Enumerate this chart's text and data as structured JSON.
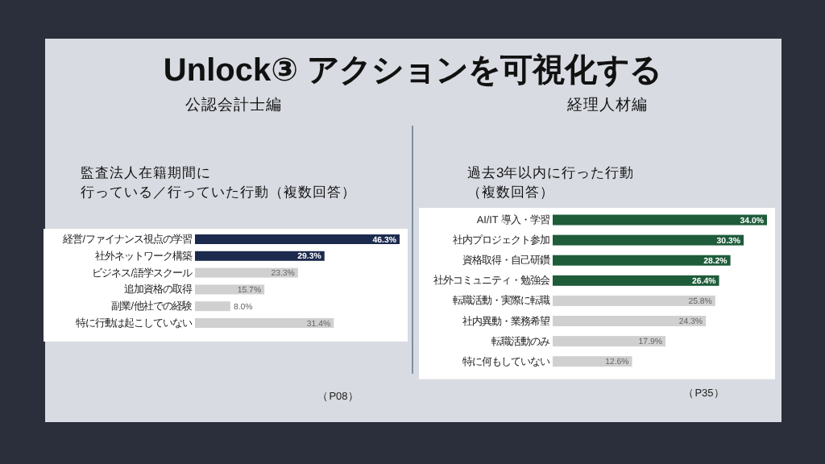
{
  "chart_data": [
    {
      "type": "bar",
      "orientation": "horizontal",
      "title": "公認会計士編",
      "subtitle": "監査法人在籍期間に行っている／行っていた行動（複数回答）",
      "annotations": [
        "Unlock③  アクションを可視化する",
        "（P08）"
      ],
      "categories": [
        "経営/ファイナンス視点の学習",
        "社外ネットワーク構築",
        "ビジネス/語学スクール",
        "追加資格の取得",
        "副業/他社での経験",
        "特に行動は起こしていない"
      ],
      "values": [
        46.3,
        29.3,
        23.3,
        15.7,
        8.0,
        31.4
      ],
      "value_labels": [
        "46.3%",
        "29.3%",
        "23.3%",
        "15.7%",
        "8.0%",
        "31.4%"
      ],
      "colors": [
        "#1c2a4e",
        "#1c2a4e",
        "#d0d0d0",
        "#d0d0d0",
        "#d0d0d0",
        "#d0d0d0"
      ]
    },
    {
      "type": "bar",
      "orientation": "horizontal",
      "title": "経理人材編",
      "subtitle": "過去3年以内に行った行動（複数回答）",
      "annotations": [
        "（P35）"
      ],
      "categories": [
        "AI/IT 導入・学習",
        "社内プロジェクト参加",
        "資格取得・自己研鑽",
        "社外コミュニティ・勉強会",
        "転職活動・実際に転職",
        "社内異動・業務希望",
        "転職活動のみ",
        "特に何もしていない"
      ],
      "values": [
        34.0,
        30.3,
        28.2,
        26.4,
        25.8,
        24.3,
        17.9,
        12.6
      ],
      "value_labels": [
        "34.0%",
        "30.3%",
        "28.2%",
        "26.4%",
        "25.8%",
        "24.3%",
        "17.9%",
        "12.6%"
      ],
      "colors": [
        "#1e5c3a",
        "#1e5c3a",
        "#1e5c3a",
        "#1e5c3a",
        "#d0d0d0",
        "#d0d0d0",
        "#d0d0d0",
        "#d0d0d0"
      ]
    }
  ]
}
